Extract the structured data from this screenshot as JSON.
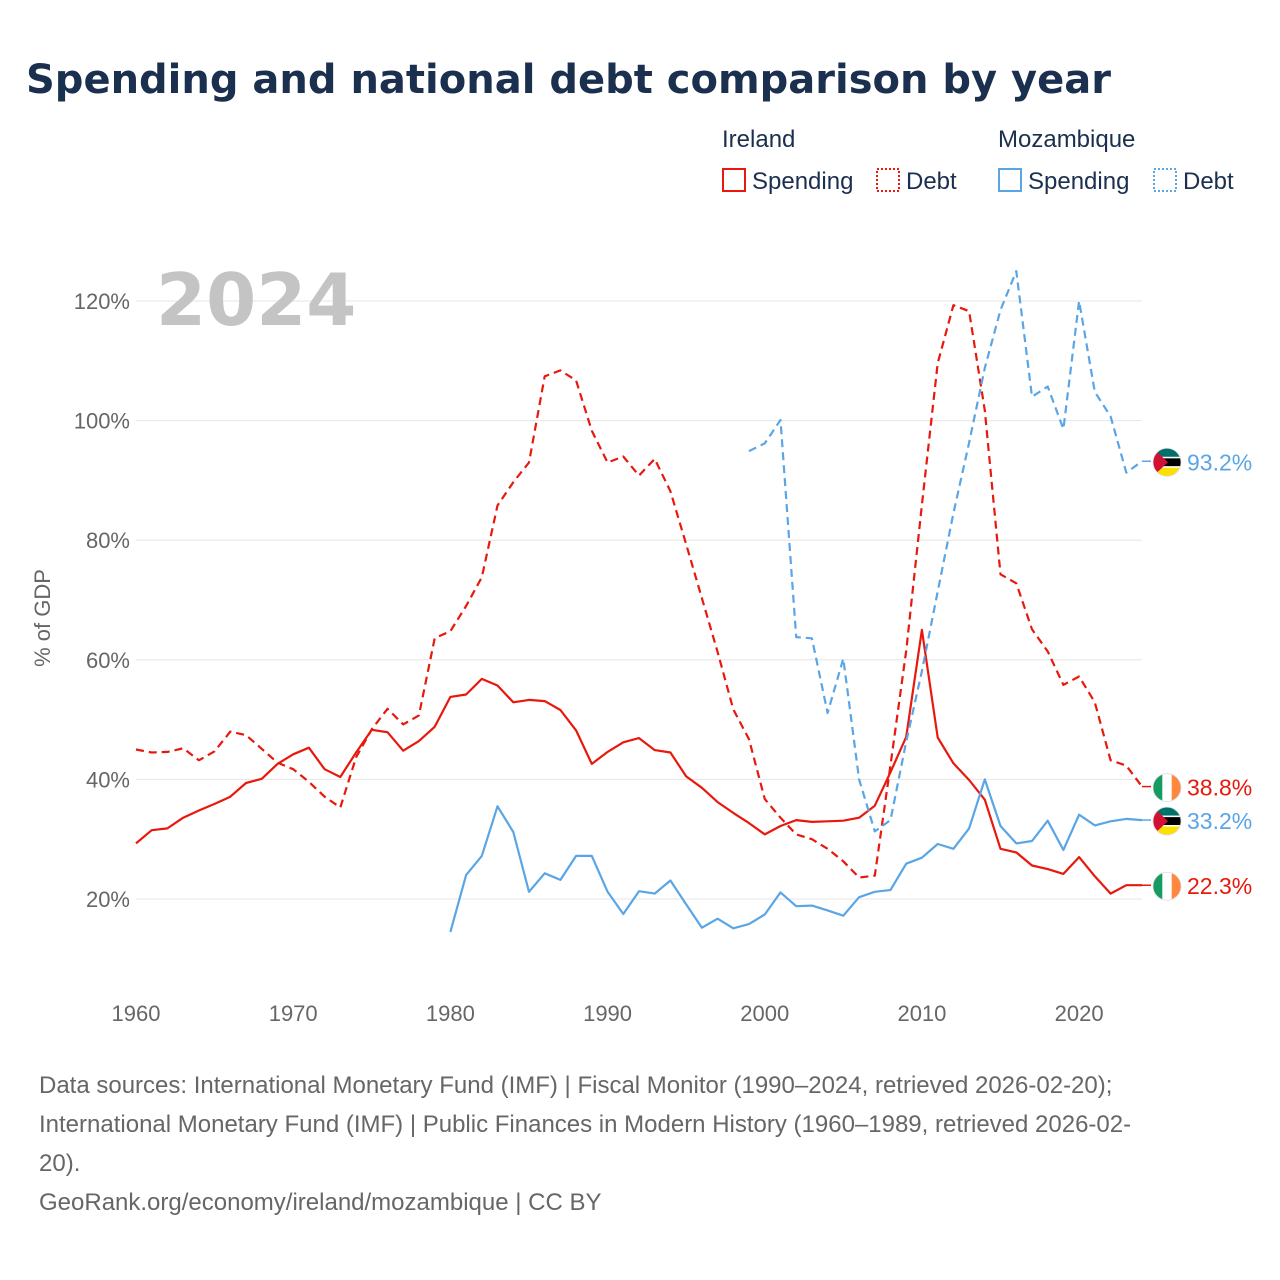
{
  "title": "Spending and national debt comparison by year",
  "legend": {
    "groups": [
      {
        "country": "Ireland",
        "color": "#e8180c",
        "items": [
          {
            "label": "Spending",
            "style": "solid"
          },
          {
            "label": "Debt",
            "style": "dotted"
          }
        ]
      },
      {
        "country": "Mozambique",
        "color": "#5aa5e6",
        "items": [
          {
            "label": "Spending",
            "style": "solid"
          },
          {
            "label": "Debt",
            "style": "dotted"
          }
        ]
      }
    ]
  },
  "year_label": "2024",
  "sources": {
    "line1": "Data sources: International Monetary Fund (IMF) | Fiscal Monitor (1990–2024, retrieved 2026-02-20);",
    "line2": "International Monetary Fund (IMF) | Public Finances in Modern History (1960–1989, retrieved 2026-02-",
    "line3": "20).",
    "line4": "GeoRank.org/economy/ireland/mozambique | CC BY"
  },
  "chart_data": {
    "type": "line",
    "title": "Spending and national debt comparison by year",
    "xlabel": "",
    "ylabel": "% of GDP",
    "xlim": [
      1960,
      2024
    ],
    "ylim": [
      9,
      126
    ],
    "x_ticks": [
      1960,
      1970,
      1980,
      1990,
      2000,
      2010,
      2020
    ],
    "y_ticks": [
      20,
      40,
      60,
      80,
      100,
      120
    ],
    "y_tick_labels": [
      "20%",
      "40%",
      "60%",
      "80%",
      "100%",
      "120%"
    ],
    "grid": true,
    "legend_position": "top-right",
    "series": [
      {
        "name": "Ireland Debt",
        "country": "Ireland",
        "metric": "Debt",
        "color": "#e8180c",
        "dash": "dashed",
        "end_label": "38.8%",
        "flag": "ireland",
        "x": [
          1960,
          1961,
          1962,
          1963,
          1964,
          1965,
          1966,
          1967,
          1968,
          1969,
          1970,
          1971,
          1972,
          1973,
          1974,
          1975,
          1976,
          1977,
          1978,
          1979,
          1980,
          1981,
          1982,
          1983,
          1984,
          1985,
          1986,
          1987,
          1988,
          1989,
          1990,
          1991,
          1992,
          1993,
          1994,
          1995,
          1996,
          1997,
          1998,
          1999,
          2000,
          2001,
          2002,
          2003,
          2004,
          2005,
          2006,
          2007,
          2008,
          2009,
          2010,
          2011,
          2012,
          2013,
          2014,
          2015,
          2016,
          2017,
          2018,
          2019,
          2020,
          2021,
          2022,
          2023,
          2024
        ],
        "values": [
          45,
          44.5,
          44.6,
          45.2,
          43.2,
          44.7,
          48,
          47.4,
          45.1,
          42.8,
          41.7,
          39.6,
          37.1,
          35.3,
          43.7,
          48.4,
          51.8,
          49.2,
          50.7,
          63.6,
          64.8,
          69,
          73.8,
          85.8,
          89.7,
          93,
          107.4,
          108.4,
          106.7,
          98.3,
          93,
          94,
          90.8,
          93.6,
          88.2,
          79.3,
          70.3,
          61.3,
          51.7,
          46.7,
          36.7,
          33.6,
          30.8,
          30,
          28.4,
          26.3,
          23.6,
          23.9,
          42.4,
          61.5,
          85.9,
          109.6,
          119.3,
          118.3,
          101.7,
          74.3,
          72.8,
          65.1,
          61.4,
          55.8,
          57.2,
          52.9,
          43.2,
          42.3,
          38.8
        ]
      },
      {
        "name": "Ireland Spending",
        "country": "Ireland",
        "metric": "Spending",
        "color": "#e8180c",
        "dash": "solid",
        "end_label": "22.3%",
        "flag": "ireland",
        "x": [
          1960,
          1961,
          1962,
          1963,
          1964,
          1965,
          1966,
          1967,
          1968,
          1969,
          1970,
          1971,
          1972,
          1973,
          1974,
          1975,
          1976,
          1977,
          1978,
          1979,
          1980,
          1981,
          1982,
          1983,
          1984,
          1985,
          1986,
          1987,
          1988,
          1989,
          1990,
          1991,
          1992,
          1993,
          1994,
          1995,
          1996,
          1997,
          1998,
          1999,
          2000,
          2001,
          2002,
          2003,
          2004,
          2005,
          2006,
          2007,
          2008,
          2009,
          2010,
          2011,
          2012,
          2013,
          2014,
          2015,
          2016,
          2017,
          2018,
          2019,
          2020,
          2021,
          2022,
          2023,
          2024
        ],
        "values": [
          29.3,
          31.5,
          31.8,
          33.6,
          34.8,
          35.9,
          37.1,
          39.4,
          40.1,
          42.6,
          44.2,
          45.3,
          41.7,
          40.4,
          44.5,
          48.3,
          47.9,
          44.8,
          46.4,
          48.8,
          53.8,
          54.2,
          56.8,
          55.7,
          52.9,
          53.3,
          53.1,
          51.6,
          48.2,
          42.6,
          44.6,
          46.2,
          46.9,
          44.9,
          44.5,
          40.5,
          38.6,
          36.2,
          34.4,
          32.7,
          30.8,
          32.2,
          33.2,
          32.9,
          33,
          33.1,
          33.6,
          35.6,
          41.2,
          47.1,
          65,
          47,
          42.7,
          39.9,
          36.6,
          28.4,
          27.8,
          25.6,
          25,
          24.2,
          27,
          23.8,
          20.9,
          22.3,
          22.3
        ]
      },
      {
        "name": "Mozambique Debt",
        "country": "Mozambique",
        "metric": "Debt",
        "color": "#5aa5e6",
        "dash": "dashed",
        "end_label": "93.2%",
        "flag": "mozambique",
        "x": [
          1999,
          2000,
          2001,
          2002,
          2003,
          2004,
          2005,
          2006,
          2007,
          2008,
          2009,
          2010,
          2011,
          2012,
          2013,
          2014,
          2015,
          2016,
          2017,
          2018,
          2019,
          2020,
          2021,
          2022,
          2023,
          2024
        ],
        "values": [
          94.9,
          96.2,
          100.1,
          63.8,
          63.6,
          51.1,
          60.2,
          40,
          31.3,
          33.2,
          46.3,
          58.1,
          71.4,
          84.5,
          96.3,
          108.8,
          118.5,
          125,
          104,
          105.7,
          98.6,
          120,
          104.8,
          100.7,
          91.3,
          93.2
        ]
      },
      {
        "name": "Mozambique Spending",
        "country": "Mozambique",
        "metric": "Spending",
        "color": "#5aa5e6",
        "dash": "solid",
        "end_label": "33.2%",
        "flag": "mozambique",
        "x": [
          1980,
          1981,
          1982,
          1983,
          1984,
          1985,
          1986,
          1987,
          1988,
          1989,
          1990,
          1991,
          1992,
          1993,
          1994,
          1995,
          1996,
          1997,
          1998,
          1999,
          2000,
          2001,
          2002,
          2003,
          2004,
          2005,
          2006,
          2007,
          2008,
          2009,
          2010,
          2011,
          2012,
          2013,
          2014,
          2015,
          2016,
          2017,
          2018,
          2019,
          2020,
          2021,
          2022,
          2023,
          2024
        ],
        "values": [
          14.5,
          24,
          27.2,
          35.5,
          31.2,
          21.2,
          24.3,
          23.2,
          27.2,
          27.2,
          21.2,
          17.5,
          21.3,
          20.9,
          23.1,
          19.1,
          15.2,
          16.7,
          15.1,
          15.8,
          17.4,
          21.1,
          18.8,
          18.9,
          18.1,
          17.2,
          20.3,
          21.2,
          21.5,
          25.9,
          26.9,
          29.2,
          28.4,
          31.8,
          40,
          32.2,
          29.3,
          29.7,
          33.1,
          28.2,
          34.1,
          32.3,
          33,
          33.4,
          33.2
        ]
      }
    ]
  }
}
